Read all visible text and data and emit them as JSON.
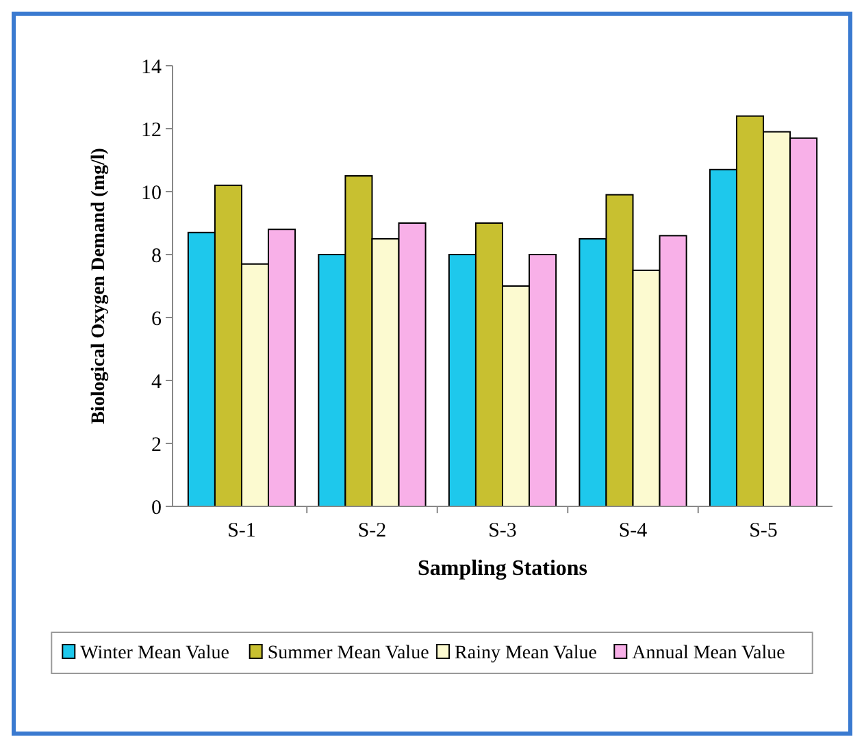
{
  "chart_data": {
    "type": "bar",
    "xlabel": "Sampling Stations",
    "ylabel": "Biological Oxygen Demand (mg/l)",
    "categories": [
      "S-1",
      "S-2",
      "S-3",
      "S-4",
      "S-5"
    ],
    "series": [
      {
        "name": "Winter Mean Value",
        "color": "#1ec8ec",
        "values": [
          8.7,
          8.0,
          8.0,
          8.5,
          10.7
        ]
      },
      {
        "name": "Summer Mean Value",
        "color": "#c8c030",
        "values": [
          10.2,
          10.5,
          9.0,
          9.9,
          12.4
        ]
      },
      {
        "name": "Rainy Mean Value",
        "color": "#fcfad0",
        "values": [
          7.7,
          8.5,
          7.0,
          7.5,
          11.9
        ]
      },
      {
        "name": "Annual Mean Value",
        "color": "#f8b0e8",
        "values": [
          8.8,
          9.0,
          8.0,
          8.6,
          11.7
        ]
      }
    ],
    "ylim": [
      0,
      14
    ],
    "yticks": [
      0,
      2,
      4,
      6,
      8,
      10,
      12,
      14
    ],
    "grid": false,
    "legend": "bottom"
  }
}
